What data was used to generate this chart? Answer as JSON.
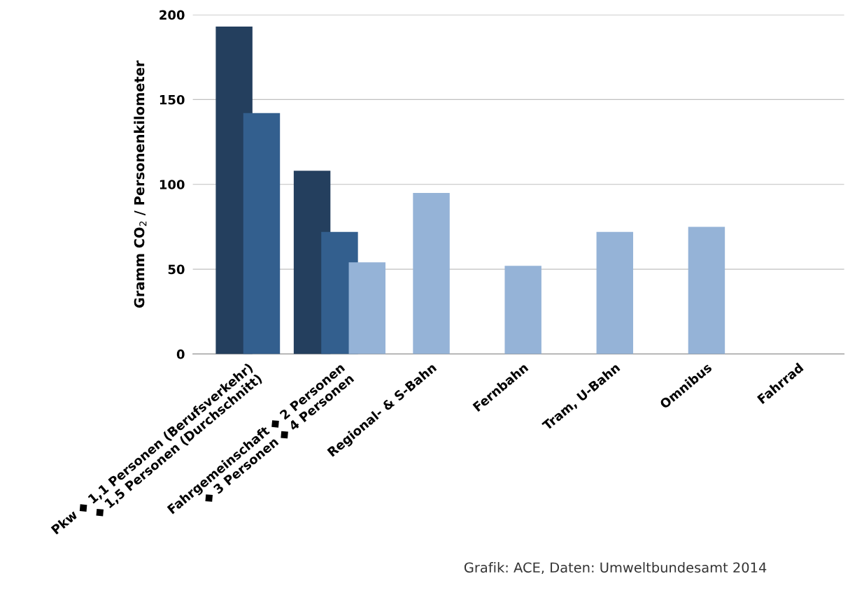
{
  "chart_data": {
    "type": "bar",
    "ylabel": "Gramm CO$_{2}$ / Personenkilometer",
    "categories": [
      "Pkw ◆ 1,1 Personen (Berufsverkehr)\n◆ 1,5 Personen (Durchschnitt)",
      "Fahrgemeinschaft ◆ 2 Personen\n◆ 3 Personen ◆ 4 Personen",
      "Regional- & S-Bahn",
      "Fernbahn",
      "Tram, U-Bahn",
      "Omnibus",
      "Fahrrad"
    ],
    "series": [
      {
        "color": "#243f5e",
        "values": [
          193,
          108,
          null,
          null,
          null,
          null,
          null
        ]
      },
      {
        "color": "#335f8e",
        "values": [
          142,
          72,
          null,
          null,
          null,
          null,
          null
        ]
      },
      {
        "color": "#95b3d7",
        "values": [
          null,
          54,
          95,
          52,
          72,
          75,
          0
        ]
      }
    ],
    "ylim": [
      0,
      200
    ],
    "yticks": [
      0,
      50,
      100,
      150,
      200
    ],
    "grid": "y",
    "legend": false,
    "annotations": [
      "Grafik: ACE, Daten: Umweltbundesamt 2014"
    ]
  }
}
